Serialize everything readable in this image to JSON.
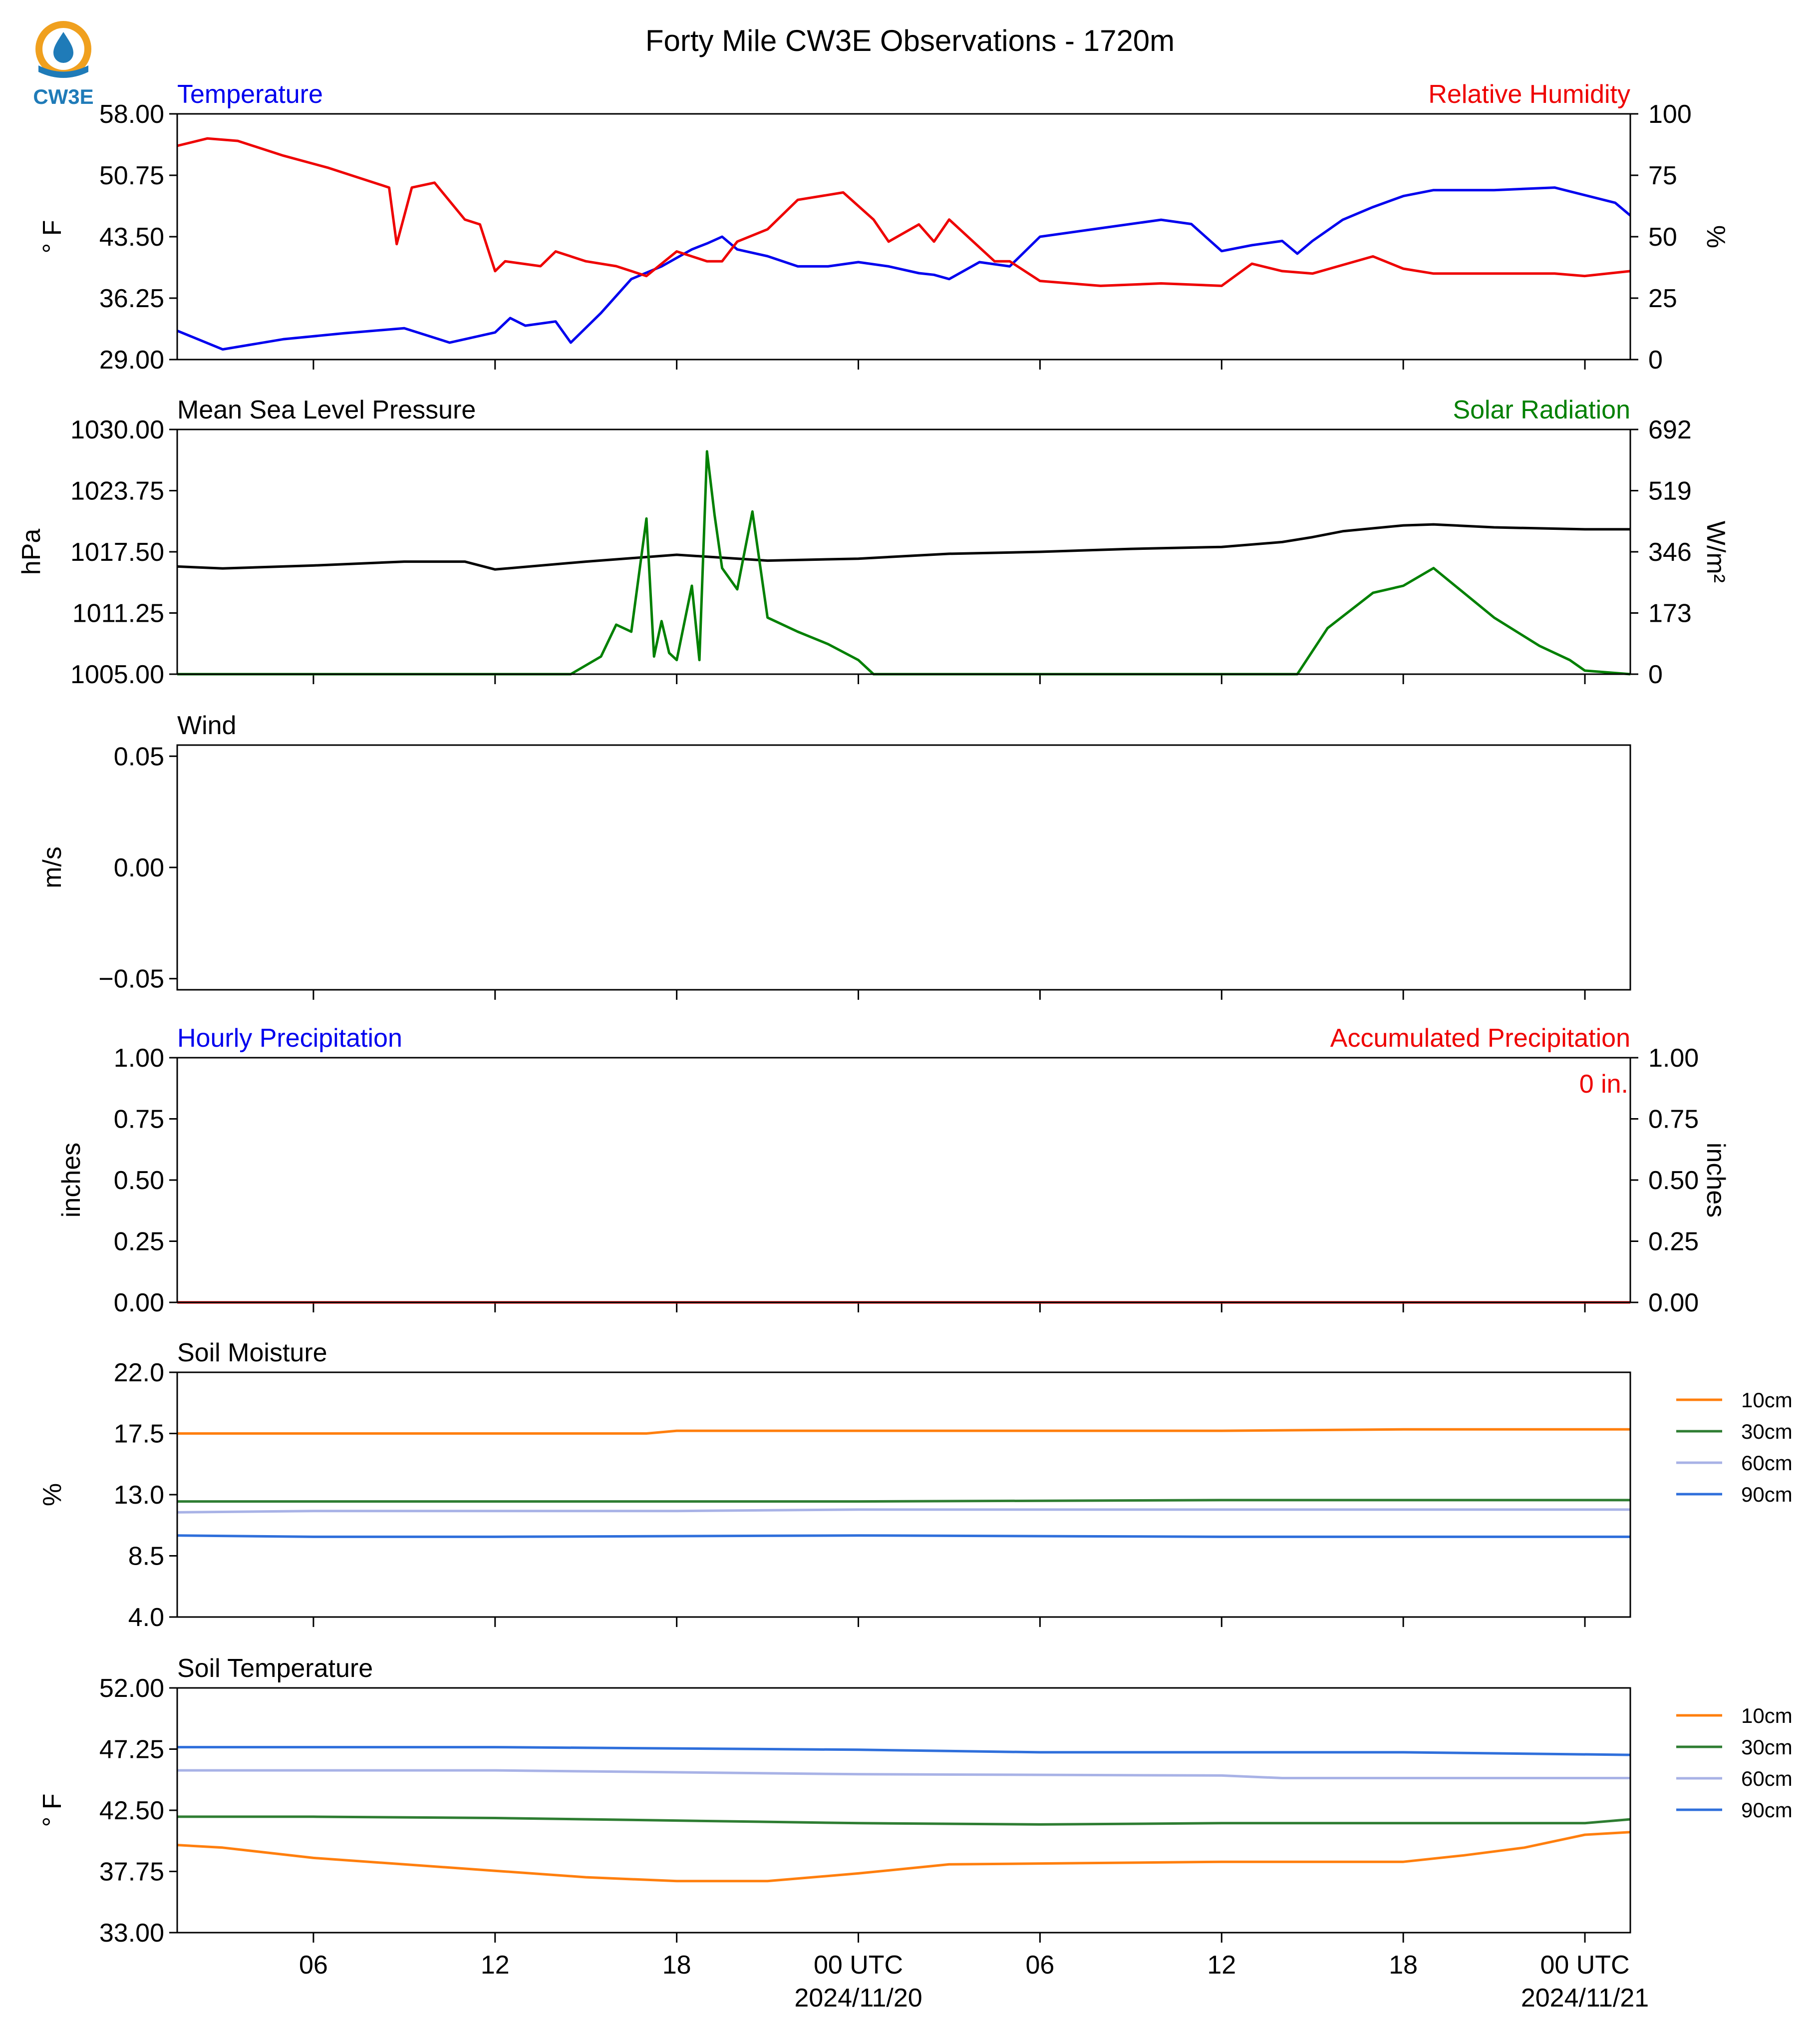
{
  "title": "Forty Mile CW3E Observations - 1720m",
  "logo": {
    "text": "CW3E",
    "ring_color": "#f0a01e",
    "drop_color": "#1f7bb8"
  },
  "x_axis": {
    "start": "2024-11-19T01:30",
    "end": "2024-11-21T01:30",
    "tick_labels": [
      {
        "t": "2024-11-19T06:00",
        "label": "06"
      },
      {
        "t": "2024-11-19T12:00",
        "label": "12"
      },
      {
        "t": "2024-11-19T18:00",
        "label": "18"
      },
      {
        "t": "2024-11-20T00:00",
        "label": "00 UTC",
        "date": "2024/11/20"
      },
      {
        "t": "2024-11-20T06:00",
        "label": "06"
      },
      {
        "t": "2024-11-20T12:00",
        "label": "12"
      },
      {
        "t": "2024-11-20T18:00",
        "label": "18"
      },
      {
        "t": "2024-11-21T00:00",
        "label": "00 UTC",
        "date": "2024/11/21"
      }
    ]
  },
  "chart_data": [
    {
      "type": "line",
      "left_title": "Temperature",
      "left_title_color": "#0000ee",
      "right_title": "Relative Humidity",
      "right_title_color": "#ee0000",
      "ylabel": "° F",
      "ylim": [
        29,
        58
      ],
      "yticks": [
        "29.00",
        "36.25",
        "43.50",
        "50.75",
        "58.00"
      ],
      "ylabel_right": "%",
      "ylim_right": [
        0,
        100
      ],
      "yticks_right": [
        "0",
        "25",
        "50",
        "75",
        "100"
      ],
      "series": [
        {
          "axis": "left",
          "color": "#0000ee",
          "t": [
            "2024-11-19T01:30",
            "2024-11-19T03:00",
            "2024-11-19T05:00",
            "2024-11-19T07:00",
            "2024-11-19T09:00",
            "2024-11-19T10:30",
            "2024-11-19T12:00",
            "2024-11-19T12:30",
            "2024-11-19T13:00",
            "2024-11-19T14:00",
            "2024-11-19T14:30",
            "2024-11-19T15:30",
            "2024-11-19T16:30",
            "2024-11-19T17:30",
            "2024-11-19T18:30",
            "2024-11-19T19:00",
            "2024-11-19T19:30",
            "2024-11-19T20:00",
            "2024-11-19T21:00",
            "2024-11-19T22:00",
            "2024-11-19T23:00",
            "2024-11-20T00:00",
            "2024-11-20T01:00",
            "2024-11-20T02:00",
            "2024-11-20T02:30",
            "2024-11-20T03:00",
            "2024-11-20T04:00",
            "2024-11-20T05:00",
            "2024-11-20T06:00",
            "2024-11-20T08:00",
            "2024-11-20T10:00",
            "2024-11-20T11:00",
            "2024-11-20T12:00",
            "2024-11-20T13:00",
            "2024-11-20T14:00",
            "2024-11-20T14:30",
            "2024-11-20T15:00",
            "2024-11-20T16:00",
            "2024-11-20T17:00",
            "2024-11-20T18:00",
            "2024-11-20T19:00",
            "2024-11-20T21:00",
            "2024-11-20T23:00",
            "2024-11-21T01:00",
            "2024-11-21T01:30"
          ],
          "y": [
            32.4,
            30.2,
            31.4,
            32.1,
            32.7,
            31.0,
            32.2,
            33.9,
            33.0,
            33.5,
            31.0,
            34.5,
            38.5,
            40.0,
            42.0,
            42.7,
            43.5,
            42.0,
            41.2,
            40.0,
            40.0,
            40.5,
            40.0,
            39.2,
            39.0,
            38.5,
            40.5,
            40.0,
            43.5,
            44.5,
            45.5,
            45.0,
            41.8,
            42.5,
            43.0,
            41.5,
            43.0,
            45.5,
            47.0,
            48.3,
            49.0,
            49.0,
            49.3,
            47.5,
            46.0
          ]
        },
        {
          "axis": "right",
          "color": "#ee0000",
          "t": [
            "2024-11-19T01:30",
            "2024-11-19T02:30",
            "2024-11-19T03:30",
            "2024-11-19T05:00",
            "2024-11-19T06:30",
            "2024-11-19T07:00",
            "2024-11-19T08:30",
            "2024-11-19T08:45",
            "2024-11-19T09:15",
            "2024-11-19T10:00",
            "2024-11-19T11:00",
            "2024-11-19T11:30",
            "2024-11-19T12:00",
            "2024-11-19T12:20",
            "2024-11-19T13:30",
            "2024-11-19T14:00",
            "2024-11-19T15:00",
            "2024-11-19T16:00",
            "2024-11-19T17:00",
            "2024-11-19T18:00",
            "2024-11-19T19:00",
            "2024-11-19T19:30",
            "2024-11-19T20:00",
            "2024-11-19T21:00",
            "2024-11-19T22:00",
            "2024-11-19T23:30",
            "2024-11-20T00:30",
            "2024-11-20T01:00",
            "2024-11-20T02:00",
            "2024-11-20T02:30",
            "2024-11-20T03:00",
            "2024-11-20T04:30",
            "2024-11-20T05:00",
            "2024-11-20T06:00",
            "2024-11-20T08:00",
            "2024-11-20T10:00",
            "2024-11-20T12:00",
            "2024-11-20T13:00",
            "2024-11-20T14:00",
            "2024-11-20T15:00",
            "2024-11-20T17:00",
            "2024-11-20T18:00",
            "2024-11-20T19:00",
            "2024-11-20T21:00",
            "2024-11-20T23:00",
            "2024-11-21T00:00",
            "2024-11-21T01:30"
          ],
          "y": [
            87,
            90,
            89,
            83,
            78,
            76,
            70,
            47,
            70,
            72,
            57,
            55,
            36,
            40,
            38,
            44,
            40,
            38,
            34,
            44,
            40,
            40,
            48,
            53,
            65,
            68,
            57,
            48,
            55,
            48,
            57,
            40,
            40,
            32,
            30,
            31,
            30,
            39,
            36,
            35,
            42,
            37,
            35,
            35,
            35,
            34,
            36
          ]
        }
      ]
    },
    {
      "type": "line",
      "left_title": "Mean Sea Level Pressure",
      "left_title_color": "#000000",
      "right_title": "Solar Radiation",
      "right_title_color": "#008000",
      "ylabel": "hPa",
      "ylim": [
        1005,
        1030
      ],
      "yticks": [
        "1005.00",
        "1011.25",
        "1017.50",
        "1023.75",
        "1030.00"
      ],
      "ylabel_right": "W/m²",
      "ylim_right": [
        0,
        692
      ],
      "yticks_right": [
        "0",
        "173",
        "346",
        "519",
        "692"
      ],
      "series": [
        {
          "axis": "left",
          "color": "#000000",
          "t": [
            "2024-11-19T01:30",
            "2024-11-19T03:00",
            "2024-11-19T06:00",
            "2024-11-19T09:00",
            "2024-11-19T11:00",
            "2024-11-19T12:00",
            "2024-11-19T15:00",
            "2024-11-19T18:00",
            "2024-11-19T21:00",
            "2024-11-20T00:00",
            "2024-11-20T03:00",
            "2024-11-20T06:00",
            "2024-11-20T09:00",
            "2024-11-20T12:00",
            "2024-11-20T14:00",
            "2024-11-20T15:00",
            "2024-11-20T16:00",
            "2024-11-20T18:00",
            "2024-11-20T19:00",
            "2024-11-20T21:00",
            "2024-11-21T00:00",
            "2024-11-21T01:30"
          ],
          "y": [
            1016.0,
            1015.8,
            1016.1,
            1016.5,
            1016.5,
            1015.7,
            1016.5,
            1017.2,
            1016.6,
            1016.8,
            1017.3,
            1017.5,
            1017.8,
            1018.0,
            1018.5,
            1019.0,
            1019.6,
            1020.2,
            1020.3,
            1020.0,
            1019.8,
            1019.8
          ]
        },
        {
          "axis": "right",
          "color": "#008000",
          "t": [
            "2024-11-19T01:30",
            "2024-11-19T14:30",
            "2024-11-19T15:30",
            "2024-11-19T16:00",
            "2024-11-19T16:30",
            "2024-11-19T17:00",
            "2024-11-19T17:15",
            "2024-11-19T17:30",
            "2024-11-19T17:45",
            "2024-11-19T18:00",
            "2024-11-19T18:30",
            "2024-11-19T18:45",
            "2024-11-19T19:00",
            "2024-11-19T19:15",
            "2024-11-19T19:30",
            "2024-11-19T20:00",
            "2024-11-19T20:30",
            "2024-11-19T21:00",
            "2024-11-19T22:00",
            "2024-11-19T23:00",
            "2024-11-20T00:00",
            "2024-11-20T00:30",
            "2024-11-20T14:30",
            "2024-11-20T15:30",
            "2024-11-20T17:00",
            "2024-11-20T18:00",
            "2024-11-20T19:00",
            "2024-11-20T20:00",
            "2024-11-20T21:00",
            "2024-11-20T22:30",
            "2024-11-20T23:30",
            "2024-11-21T00:00",
            "2024-11-21T01:30"
          ],
          "y": [
            0,
            0,
            50,
            140,
            120,
            440,
            50,
            150,
            60,
            40,
            250,
            40,
            630,
            450,
            300,
            240,
            460,
            160,
            120,
            85,
            40,
            0,
            0,
            130,
            230,
            250,
            300,
            230,
            160,
            80,
            40,
            10,
            0
          ]
        }
      ]
    },
    {
      "type": "line",
      "left_title": "Wind",
      "left_title_color": "#000000",
      "ylabel": "m/s",
      "ylim": [
        -0.055,
        0.055
      ],
      "yticks": [
        "−0.05",
        "0.00",
        "0.05"
      ],
      "series": []
    },
    {
      "type": "line",
      "left_title": "Hourly Precipitation",
      "left_title_color": "#0000ee",
      "right_title": "Accumulated Precipitation",
      "right_title_color": "#ee0000",
      "annotation": "0 in.",
      "ylabel": "inches",
      "ylim": [
        0,
        1
      ],
      "yticks": [
        "0.00",
        "0.25",
        "0.50",
        "0.75",
        "1.00"
      ],
      "ylabel_right": "inches",
      "ylim_right": [
        0,
        1
      ],
      "yticks_right": [
        "0.00",
        "0.25",
        "0.50",
        "0.75",
        "1.00"
      ],
      "series": [
        {
          "axis": "left",
          "color": "#ee0000",
          "t": [
            "2024-11-19T01:30",
            "2024-11-21T01:30"
          ],
          "y": [
            0,
            0
          ]
        }
      ]
    },
    {
      "type": "line",
      "left_title": "Soil Moisture",
      "left_title_color": "#000000",
      "ylabel": "%",
      "ylim": [
        4,
        22
      ],
      "yticks": [
        "4.0",
        "8.5",
        "13.0",
        "17.5",
        "22.0"
      ],
      "legend": "right",
      "series": [
        {
          "name": "10cm",
          "color": "#ff7f0e",
          "t": [
            "2024-11-19T01:30",
            "2024-11-19T12:00",
            "2024-11-19T17:00",
            "2024-11-19T18:00",
            "2024-11-20T00:00",
            "2024-11-20T12:00",
            "2024-11-20T18:00",
            "2024-11-21T01:30"
          ],
          "y": [
            17.5,
            17.5,
            17.5,
            17.7,
            17.7,
            17.7,
            17.8,
            17.8
          ]
        },
        {
          "name": "30cm",
          "color": "#2e7d32",
          "t": [
            "2024-11-19T01:30",
            "2024-11-19T12:00",
            "2024-11-19T18:00",
            "2024-11-20T00:00",
            "2024-11-20T12:00",
            "2024-11-20T18:00",
            "2024-11-21T01:30"
          ],
          "y": [
            12.5,
            12.5,
            12.5,
            12.5,
            12.6,
            12.6,
            12.6
          ]
        },
        {
          "name": "60cm",
          "color": "#a8b2e6",
          "t": [
            "2024-11-19T01:30",
            "2024-11-19T06:00",
            "2024-11-19T12:00",
            "2024-11-19T18:00",
            "2024-11-20T00:00",
            "2024-11-20T12:00",
            "2024-11-21T01:30"
          ],
          "y": [
            11.7,
            11.8,
            11.8,
            11.8,
            11.9,
            11.9,
            11.9
          ]
        },
        {
          "name": "90cm",
          "color": "#2f6fdb",
          "t": [
            "2024-11-19T01:30",
            "2024-11-19T06:00",
            "2024-11-19T12:00",
            "2024-11-20T00:00",
            "2024-11-20T12:00",
            "2024-11-21T01:30"
          ],
          "y": [
            10.0,
            9.9,
            9.9,
            10.0,
            9.9,
            9.9
          ]
        }
      ]
    },
    {
      "type": "line",
      "left_title": "Soil Temperature",
      "left_title_color": "#000000",
      "ylabel": "° F",
      "ylim": [
        33,
        52
      ],
      "yticks": [
        "33.00",
        "37.75",
        "42.50",
        "47.25",
        "52.00"
      ],
      "legend": "right",
      "series": [
        {
          "name": "10cm",
          "color": "#ff7f0e",
          "t": [
            "2024-11-19T01:30",
            "2024-11-19T03:00",
            "2024-11-19T06:00",
            "2024-11-19T09:00",
            "2024-11-19T12:00",
            "2024-11-19T15:00",
            "2024-11-19T18:00",
            "2024-11-19T21:00",
            "2024-11-20T00:00",
            "2024-11-20T03:00",
            "2024-11-20T12:00",
            "2024-11-20T18:00",
            "2024-11-20T20:00",
            "2024-11-20T22:00",
            "2024-11-21T00:00",
            "2024-11-21T01:30"
          ],
          "y": [
            39.8,
            39.6,
            38.8,
            38.3,
            37.8,
            37.3,
            37.0,
            37.0,
            37.6,
            38.3,
            38.5,
            38.5,
            39.0,
            39.6,
            40.6,
            40.8
          ]
        },
        {
          "name": "30cm",
          "color": "#2e7d32",
          "t": [
            "2024-11-19T01:30",
            "2024-11-19T06:00",
            "2024-11-19T12:00",
            "2024-11-19T18:00",
            "2024-11-20T00:00",
            "2024-11-20T06:00",
            "2024-11-20T12:00",
            "2024-11-21T00:00",
            "2024-11-21T01:30"
          ],
          "y": [
            42.0,
            42.0,
            41.9,
            41.7,
            41.5,
            41.4,
            41.5,
            41.5,
            41.8
          ]
        },
        {
          "name": "60cm",
          "color": "#a8b2e6",
          "t": [
            "2024-11-19T01:30",
            "2024-11-19T12:00",
            "2024-11-20T00:00",
            "2024-11-20T12:00",
            "2024-11-20T14:00",
            "2024-11-21T01:30"
          ],
          "y": [
            45.6,
            45.6,
            45.3,
            45.2,
            45.0,
            45.0
          ]
        },
        {
          "name": "90cm",
          "color": "#2f6fdb",
          "t": [
            "2024-11-19T01:30",
            "2024-11-19T12:00",
            "2024-11-20T00:00",
            "2024-11-20T06:00",
            "2024-11-20T18:00",
            "2024-11-21T01:30"
          ],
          "y": [
            47.4,
            47.4,
            47.2,
            47.0,
            47.0,
            46.8
          ]
        }
      ]
    }
  ]
}
